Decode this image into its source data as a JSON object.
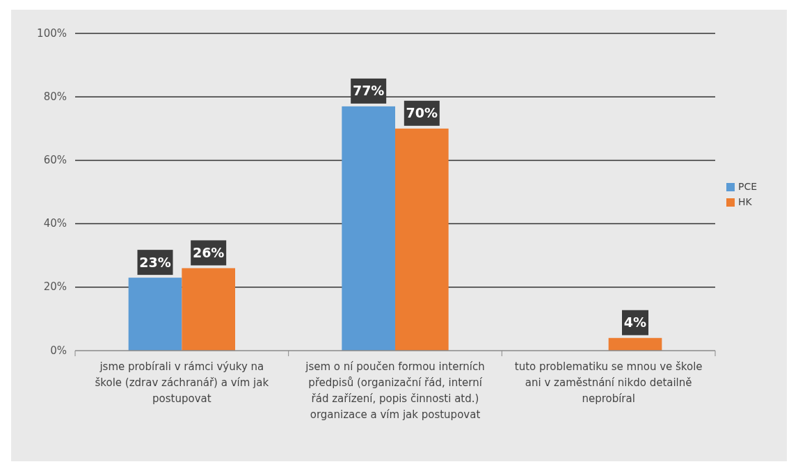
{
  "chart_data": {
    "type": "bar",
    "categories": [
      "jsme probírali v rámci výuky na škole (zdrav záchranář) a vím jak postupovat",
      "jsem o ní poučen formou interních předpisů (organizační řád, interní řád zařízení, popis činnosti atd.) organizace a vím jak postupovat",
      "tuto problematiku se mnou ve škole ani v zaměstnání nikdo detailně neprobíral"
    ],
    "series": [
      {
        "name": "PCE",
        "color": "#5b9bd5",
        "values": [
          23,
          77,
          0
        ],
        "value_labels": [
          "23%",
          "77%",
          null
        ]
      },
      {
        "name": "HK",
        "color": "#ed7d31",
        "values": [
          26,
          70,
          4
        ],
        "value_labels": [
          "26%",
          "70%",
          "4%"
        ]
      }
    ],
    "ylim": [
      0,
      100
    ],
    "yticks": [
      {
        "value": 0,
        "label": "0%"
      },
      {
        "value": 20,
        "label": "20%"
      },
      {
        "value": 40,
        "label": "40%"
      },
      {
        "value": 60,
        "label": "60%"
      },
      {
        "value": 80,
        "label": "80%"
      },
      {
        "value": 100,
        "label": "100%"
      }
    ],
    "grid": "y",
    "legend": "right"
  }
}
